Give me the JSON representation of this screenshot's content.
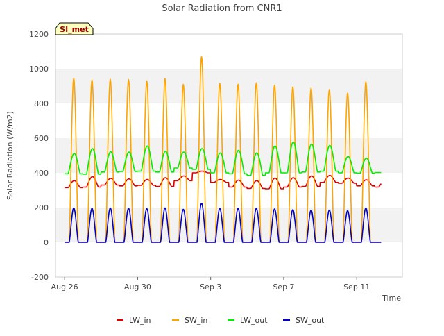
{
  "chart_data": {
    "type": "line",
    "title": "Solar Radiation from CNR1",
    "xlabel": "Time",
    "ylabel": "Solar Radiation (W/m2)",
    "site_badge": "SI_met",
    "ylim": [
      -200,
      1200
    ],
    "yticks": [
      -200,
      0,
      200,
      400,
      600,
      800,
      1000,
      1200
    ],
    "xlim": [
      "2023-08-25T12:00",
      "2023-09-13T12:00"
    ],
    "xticks": [
      {
        "date": "2023-08-26",
        "label": "Aug 26"
      },
      {
        "date": "2023-08-30",
        "label": "Aug 30"
      },
      {
        "date": "2023-09-03",
        "label": "Sep 3"
      },
      {
        "date": "2023-09-07",
        "label": "Sep 7"
      },
      {
        "date": "2023-09-11",
        "label": "Sep 11"
      }
    ],
    "grid": "horizontal bands",
    "legend_position": "bottom",
    "x": [
      "2023-08-26",
      "2023-08-27",
      "2023-08-28",
      "2023-08-29",
      "2023-08-30",
      "2023-08-31",
      "2023-09-01",
      "2023-09-02",
      "2023-09-03",
      "2023-09-04",
      "2023-09-05",
      "2023-09-06",
      "2023-09-07",
      "2023-09-08",
      "2023-09-09",
      "2023-09-10",
      "2023-09-11",
      "2023-09-12"
    ],
    "daily_peak_note": "daily peaks at local noon",
    "series": [
      {
        "name": "LW_in",
        "color": "#dd0000",
        "night": [
          315,
          318,
          330,
          325,
          328,
          322,
          355,
          400,
          345,
          318,
          310,
          308,
          318,
          322,
          345,
          340,
          325,
          318
        ],
        "peak": [
          355,
          378,
          368,
          365,
          362,
          372,
          382,
          410,
          362,
          358,
          355,
          370,
          372,
          382,
          385,
          370,
          360,
          355
        ]
      },
      {
        "name": "SW_in",
        "color": "#ffa500",
        "night": [
          0,
          0,
          0,
          0,
          0,
          0,
          0,
          0,
          0,
          0,
          0,
          0,
          0,
          0,
          0,
          0,
          0,
          0
        ],
        "peak": [
          945,
          935,
          940,
          938,
          930,
          945,
          910,
          1070,
          915,
          910,
          918,
          905,
          895,
          888,
          880,
          860,
          925,
          0
        ]
      },
      {
        "name": "LW_out",
        "color": "#00ee00",
        "night": [
          395,
          392,
          405,
          408,
          410,
          405,
          428,
          420,
          400,
          395,
          385,
          400,
          400,
          405,
          410,
          400,
          398,
          402
        ],
        "peak": [
          512,
          540,
          522,
          520,
          555,
          525,
          520,
          540,
          515,
          530,
          515,
          555,
          578,
          565,
          558,
          495,
          485,
          402
        ]
      },
      {
        "name": "SW_out",
        "color": "#0000cc",
        "night": [
          0,
          0,
          0,
          0,
          0,
          0,
          0,
          0,
          0,
          0,
          0,
          0,
          0,
          0,
          0,
          0,
          0,
          0
        ],
        "peak": [
          198,
          195,
          198,
          196,
          194,
          198,
          190,
          225,
          195,
          195,
          195,
          192,
          188,
          185,
          185,
          182,
          198,
          0
        ]
      }
    ]
  }
}
